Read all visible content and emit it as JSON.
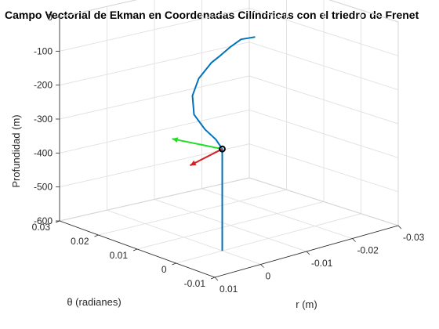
{
  "chart_data": {
    "type": "line",
    "title": "Campo Vectorial de Ekman en Coordenadas Cilíndricas con el triedro de Frenet",
    "xlabel": "r (m)",
    "ylabel": "θ (radianes)",
    "zlabel": "Profundidad (m)",
    "xlim": [
      -0.03,
      0.01
    ],
    "ylim": [
      -0.01,
      0.03
    ],
    "zlim": [
      -600,
      0
    ],
    "x_ticks": [
      "-0.03",
      "-0.02",
      "-0.01",
      "0",
      "0.01"
    ],
    "y_ticks": [
      "-0.01",
      "0",
      "0.01",
      "0.02",
      "0.03"
    ],
    "z_ticks": [
      "0",
      "-100",
      "-200",
      "-300",
      "-400",
      "-500",
      "-600"
    ],
    "grid": true,
    "series": [
      {
        "color": "#0072bd",
        "points": [
          [
            0,
            0,
            -600
          ],
          [
            0,
            0,
            -500
          ],
          [
            0,
            0,
            -400
          ],
          [
            0,
            0,
            -300
          ],
          [
            0,
            0,
            -260
          ],
          [
            0,
            0,
            -230
          ],
          [
            0,
            0,
            -200
          ],
          [
            0,
            0,
            -165
          ],
          [
            0,
            0,
            -130
          ],
          [
            0,
            0,
            -95
          ],
          [
            0,
            0,
            -60
          ],
          [
            0,
            0,
            -40
          ],
          [
            0,
            0,
            -20
          ],
          [
            0,
            0,
            0
          ]
        ]
      }
    ],
    "frenet_point": {
      "r": 0,
      "theta": 0,
      "z": -300
    },
    "vectors": [
      {
        "color": "#ff0000",
        "label": "normal"
      },
      {
        "color": "#00ff00",
        "label": "tangent"
      }
    ]
  },
  "colors": {
    "line": "#0072bd",
    "normal": "#d62020",
    "tangent": "#22dd22",
    "point": "#000000"
  }
}
